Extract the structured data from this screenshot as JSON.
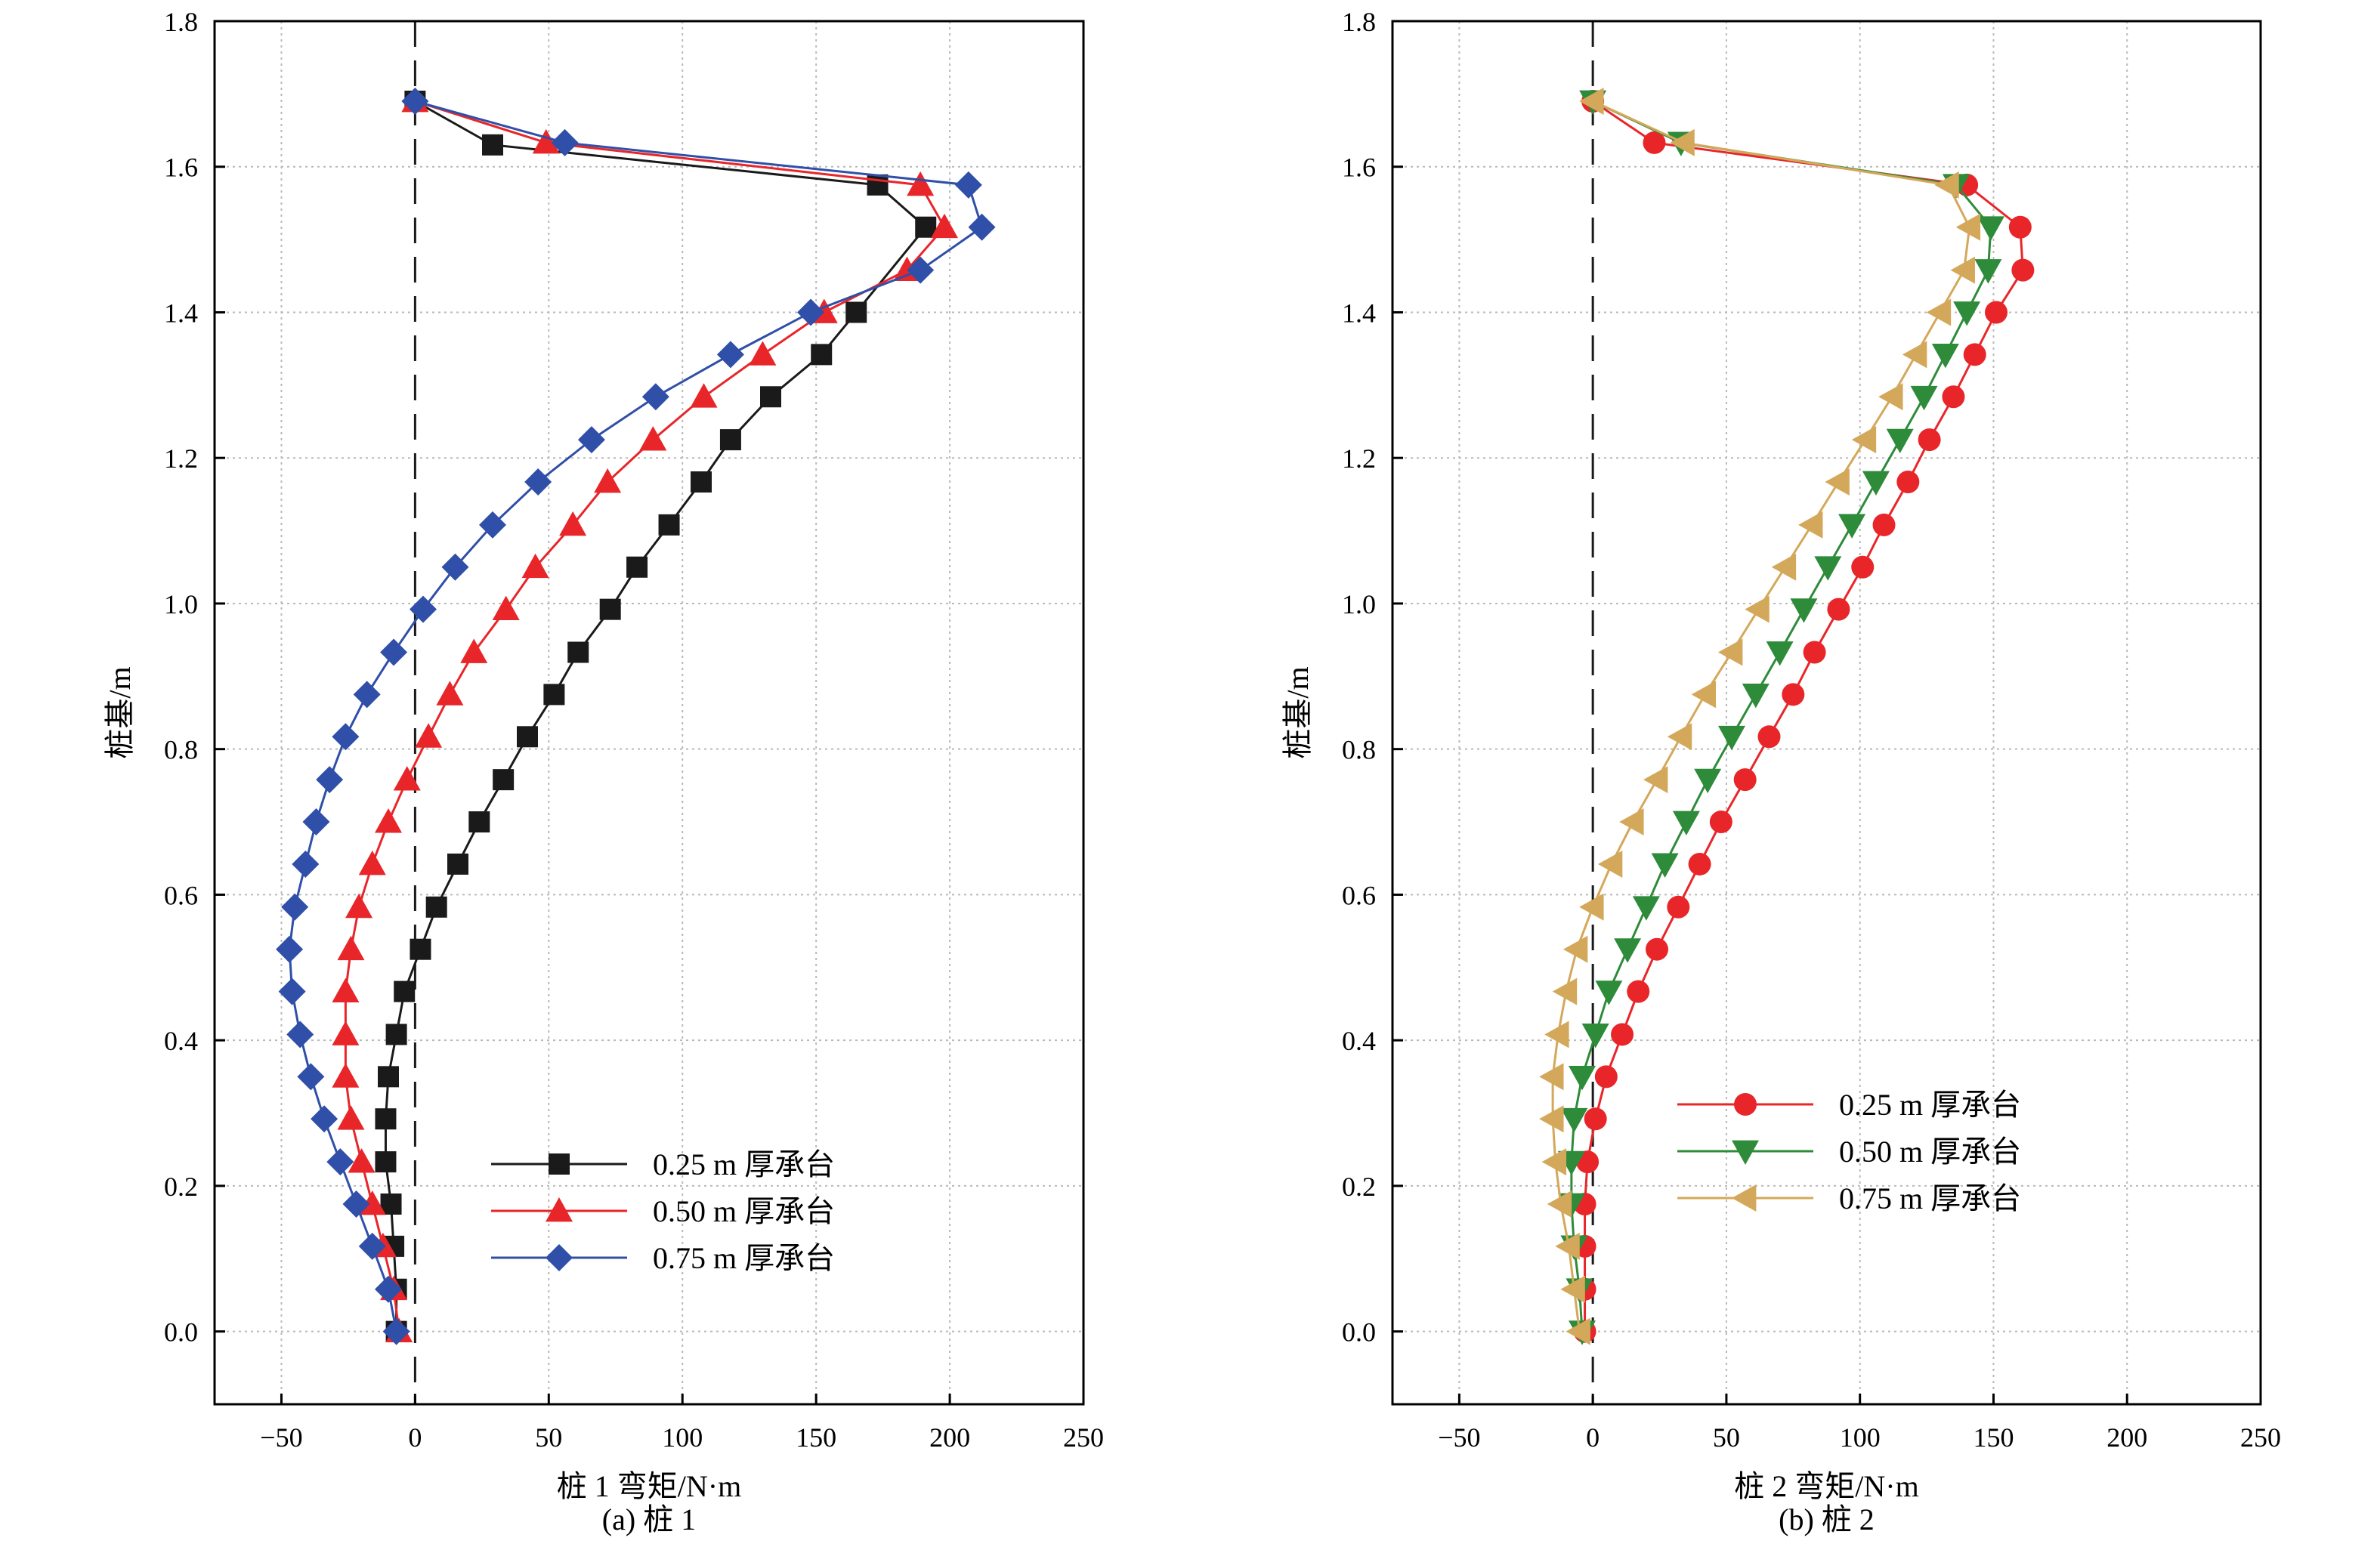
{
  "figure": {
    "captions": [
      "(a) 桩 1",
      "(b) 桩 2"
    ]
  },
  "chart_data": [
    {
      "type": "line",
      "orientation": "vertical-profile",
      "title": "",
      "xlabel": "桩 1 弯矩/N·m",
      "ylabel": "桩基/m",
      "xlim": [
        -75,
        250
      ],
      "ylim": [
        -0.1,
        1.8
      ],
      "xticks": [
        -50,
        0,
        50,
        100,
        150,
        200,
        250
      ],
      "yticks": [
        0.0,
        0.2,
        0.4,
        0.6,
        0.8,
        1.0,
        1.2,
        1.4,
        1.6,
        1.8
      ],
      "xtick_labels": [
        "−50",
        "0",
        "50",
        "100",
        "150",
        "200",
        "250"
      ],
      "ytick_labels": [
        "0.0",
        "0.2",
        "0.4",
        "0.6",
        "0.8",
        "1.0",
        "1.2",
        "1.4",
        "1.6",
        "1.8"
      ],
      "grid": true,
      "zero_line": "dashed vertical at x = 0",
      "legend_position": "lower-right",
      "series": [
        {
          "name": "0.25 m 厚承台",
          "color": "#1a1a1a",
          "marker": "square",
          "points": [
            [
              0,
              1.69
            ],
            [
              29,
              1.63
            ],
            [
              173,
              1.575
            ],
            [
              191,
              1.517
            ],
            [
              165,
              1.4
            ],
            [
              152,
              1.342
            ],
            [
              133,
              1.284
            ],
            [
              118,
              1.225
            ],
            [
              107,
              1.167
            ],
            [
              95,
              1.108
            ],
            [
              83,
              1.05
            ],
            [
              73,
              0.992
            ],
            [
              61,
              0.933
            ],
            [
              52,
              0.875
            ],
            [
              42,
              0.817
            ],
            [
              33,
              0.758
            ],
            [
              24,
              0.7
            ],
            [
              16,
              0.642
            ],
            [
              8,
              0.583
            ],
            [
              2,
              0.525
            ],
            [
              -4,
              0.467
            ],
            [
              -7,
              0.408
            ],
            [
              -10,
              0.35
            ],
            [
              -11,
              0.292
            ],
            [
              -11,
              0.233
            ],
            [
              -9,
              0.175
            ],
            [
              -8,
              0.117
            ],
            [
              -7,
              0.058
            ],
            [
              -7,
              0.0
            ]
          ]
        },
        {
          "name": "0.50 m 厚承台",
          "color": "#e8262a",
          "marker": "triangle-up",
          "points": [
            [
              0,
              1.69
            ],
            [
              49,
              1.633
            ],
            [
              189,
              1.575
            ],
            [
              198,
              1.517
            ],
            [
              184,
              1.458
            ],
            [
              153,
              1.4
            ],
            [
              130,
              1.342
            ],
            [
              108,
              1.284
            ],
            [
              89,
              1.225
            ],
            [
              72,
              1.167
            ],
            [
              59,
              1.108
            ],
            [
              45,
              1.05
            ],
            [
              34,
              0.992
            ],
            [
              22,
              0.933
            ],
            [
              13,
              0.875
            ],
            [
              5,
              0.817
            ],
            [
              -3,
              0.758
            ],
            [
              -10,
              0.7
            ],
            [
              -16,
              0.642
            ],
            [
              -21,
              0.583
            ],
            [
              -24,
              0.525
            ],
            [
              -26,
              0.467
            ],
            [
              -26,
              0.408
            ],
            [
              -26,
              0.35
            ],
            [
              -24,
              0.292
            ],
            [
              -20,
              0.233
            ],
            [
              -16,
              0.175
            ],
            [
              -12,
              0.117
            ],
            [
              -8,
              0.058
            ],
            [
              -6,
              0.0
            ]
          ]
        },
        {
          "name": "0.75 m 厚承台",
          "color": "#2f4fa8",
          "marker": "diamond",
          "points": [
            [
              0,
              1.69
            ],
            [
              56,
              1.633
            ],
            [
              207,
              1.575
            ],
            [
              212,
              1.517
            ],
            [
              189,
              1.458
            ],
            [
              148,
              1.4
            ],
            [
              118,
              1.342
            ],
            [
              90,
              1.284
            ],
            [
              66,
              1.225
            ],
            [
              46,
              1.167
            ],
            [
              29,
              1.108
            ],
            [
              15,
              1.05
            ],
            [
              3,
              0.992
            ],
            [
              -8,
              0.933
            ],
            [
              -18,
              0.875
            ],
            [
              -26,
              0.817
            ],
            [
              -32,
              0.758
            ],
            [
              -37,
              0.7
            ],
            [
              -41,
              0.642
            ],
            [
              -45,
              0.583
            ],
            [
              -47,
              0.525
            ],
            [
              -46,
              0.467
            ],
            [
              -43,
              0.408
            ],
            [
              -39,
              0.35
            ],
            [
              -34,
              0.292
            ],
            [
              -28,
              0.233
            ],
            [
              -22,
              0.175
            ],
            [
              -16,
              0.117
            ],
            [
              -10,
              0.058
            ],
            [
              -7,
              0.0
            ]
          ]
        }
      ]
    },
    {
      "type": "line",
      "orientation": "vertical-profile",
      "title": "",
      "xlabel": "桩 2 弯矩/N·m",
      "ylabel": "桩基/m",
      "xlim": [
        -75,
        250
      ],
      "ylim": [
        -0.1,
        1.8
      ],
      "xticks": [
        -50,
        0,
        50,
        100,
        150,
        200,
        250
      ],
      "yticks": [
        0.0,
        0.2,
        0.4,
        0.6,
        0.8,
        1.0,
        1.2,
        1.4,
        1.6,
        1.8
      ],
      "xtick_labels": [
        "−50",
        "0",
        "50",
        "100",
        "150",
        "200",
        "250"
      ],
      "ytick_labels": [
        "0.0",
        "0.2",
        "0.4",
        "0.6",
        "0.8",
        "1.0",
        "1.2",
        "1.4",
        "1.6",
        "1.8"
      ],
      "grid": true,
      "zero_line": "dashed vertical at x = 0",
      "legend_position": "lower-right",
      "series": [
        {
          "name": "0.25 m 厚承台",
          "color": "#e8262a",
          "marker": "circle",
          "points": [
            [
              0,
              1.69
            ],
            [
              23,
              1.633
            ],
            [
              140,
              1.575
            ],
            [
              160,
              1.517
            ],
            [
              161,
              1.458
            ],
            [
              151,
              1.4
            ],
            [
              143,
              1.342
            ],
            [
              135,
              1.284
            ],
            [
              126,
              1.225
            ],
            [
              118,
              1.167
            ],
            [
              109,
              1.108
            ],
            [
              101,
              1.05
            ],
            [
              92,
              0.992
            ],
            [
              83,
              0.933
            ],
            [
              75,
              0.875
            ],
            [
              66,
              0.817
            ],
            [
              57,
              0.758
            ],
            [
              48,
              0.7
            ],
            [
              40,
              0.642
            ],
            [
              32,
              0.583
            ],
            [
              24,
              0.525
            ],
            [
              17,
              0.467
            ],
            [
              11,
              0.408
            ],
            [
              5,
              0.35
            ],
            [
              1,
              0.292
            ],
            [
              -2,
              0.233
            ],
            [
              -3,
              0.175
            ],
            [
              -3,
              0.117
            ],
            [
              -3,
              0.058
            ],
            [
              -3,
              0.0
            ]
          ]
        },
        {
          "name": "0.50 m 厚承台",
          "color": "#2e8b3a",
          "marker": "triangle-down",
          "points": [
            [
              0,
              1.69
            ],
            [
              33,
              1.633
            ],
            [
              136,
              1.575
            ],
            [
              149,
              1.517
            ],
            [
              148,
              1.458
            ],
            [
              140,
              1.4
            ],
            [
              132,
              1.342
            ],
            [
              124,
              1.284
            ],
            [
              115,
              1.225
            ],
            [
              106,
              1.167
            ],
            [
              97,
              1.108
            ],
            [
              88,
              1.05
            ],
            [
              79,
              0.992
            ],
            [
              70,
              0.933
            ],
            [
              61,
              0.875
            ],
            [
              52,
              0.817
            ],
            [
              43,
              0.758
            ],
            [
              35,
              0.7
            ],
            [
              27,
              0.642
            ],
            [
              20,
              0.583
            ],
            [
              13,
              0.525
            ],
            [
              6,
              0.467
            ],
            [
              1,
              0.408
            ],
            [
              -4,
              0.35
            ],
            [
              -7,
              0.292
            ],
            [
              -8,
              0.233
            ],
            [
              -8,
              0.175
            ],
            [
              -7,
              0.117
            ],
            [
              -5,
              0.058
            ],
            [
              -4,
              0.0
            ]
          ]
        },
        {
          "name": "0.75 m 厚承台",
          "color": "#d4a85a",
          "marker": "triangle-left",
          "points": [
            [
              0,
              1.69
            ],
            [
              34,
              1.633
            ],
            [
              133,
              1.575
            ],
            [
              141,
              1.517
            ],
            [
              139,
              1.458
            ],
            [
              130,
              1.4
            ],
            [
              121,
              1.342
            ],
            [
              112,
              1.284
            ],
            [
              102,
              1.225
            ],
            [
              92,
              1.167
            ],
            [
              82,
              1.108
            ],
            [
              72,
              1.05
            ],
            [
              62,
              0.992
            ],
            [
              52,
              0.933
            ],
            [
              42,
              0.875
            ],
            [
              33,
              0.817
            ],
            [
              24,
              0.758
            ],
            [
              15,
              0.7
            ],
            [
              7,
              0.642
            ],
            [
              0,
              0.583
            ],
            [
              -6,
              0.525
            ],
            [
              -10,
              0.467
            ],
            [
              -13,
              0.408
            ],
            [
              -15,
              0.35
            ],
            [
              -15,
              0.292
            ],
            [
              -14,
              0.233
            ],
            [
              -12,
              0.175
            ],
            [
              -9,
              0.117
            ],
            [
              -7,
              0.058
            ],
            [
              -5,
              0.0
            ]
          ]
        }
      ]
    }
  ]
}
